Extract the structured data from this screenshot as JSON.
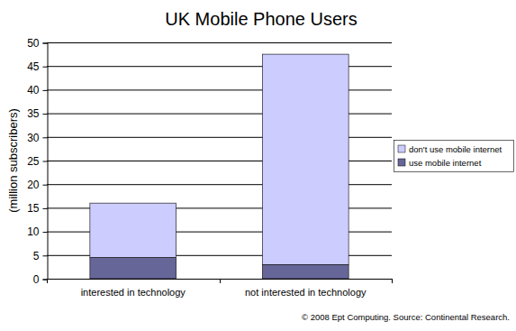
{
  "chart_data": {
    "type": "bar",
    "title": "UK Mobile Phone Users",
    "y_label": "(million subscribers)",
    "categories": [
      "interested in technology",
      "not interested in technology"
    ],
    "series": [
      {
        "name": "use mobile internet",
        "color": "#666699",
        "values": [
          4.5,
          3
        ]
      },
      {
        "name": "don't use mobile internet",
        "color": "#ccccff",
        "values": [
          11.5,
          44.5
        ]
      }
    ],
    "stacked": true,
    "ylim": [
      0,
      50
    ],
    "yticks": [
      0,
      5,
      10,
      15,
      20,
      25,
      30,
      35,
      40,
      45,
      50
    ],
    "grid": true,
    "legend": "right",
    "annotations": [
      "© 2008 Ept Computing. Source: Continental Research."
    ]
  }
}
